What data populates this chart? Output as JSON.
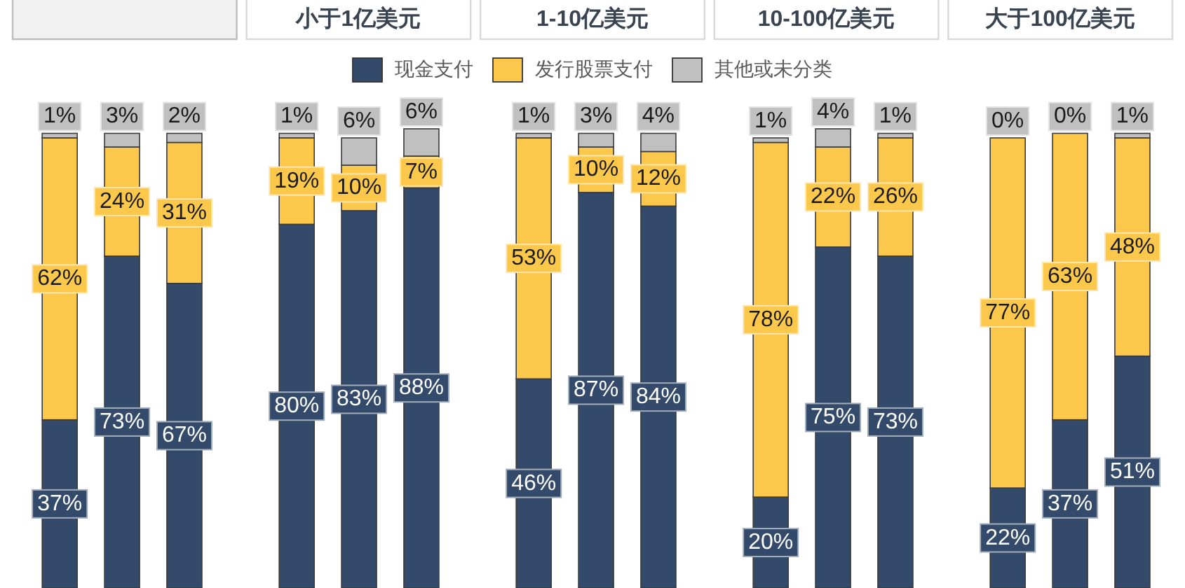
{
  "chart_data": [
    {
      "type": "bar",
      "stacked": true,
      "legend": "top",
      "categories": [
        null,
        null,
        null
      ],
      "series": [
        {
          "name": "现金支付",
          "color": "#334a6b",
          "values": [
            37,
            73,
            67
          ],
          "value_labels": [
            "37%",
            "73%",
            "67%"
          ]
        },
        {
          "name": "发行股票支付",
          "color": "#fcc84b",
          "values": [
            62,
            24,
            31
          ],
          "value_labels": [
            "62%",
            "24%",
            "31%"
          ]
        },
        {
          "name": "其他或未分类",
          "color": "#c0c0c0",
          "values": [
            1,
            3,
            2
          ],
          "value_labels": [
            "1%",
            "3%",
            "2%"
          ]
        }
      ]
    },
    {
      "type": "bar",
      "title": "小于1亿美元",
      "stacked": true,
      "categories": [
        null,
        null,
        null
      ],
      "series": [
        {
          "color": "#334a6b",
          "values": [
            80,
            83,
            88
          ],
          "value_labels": [
            "80%",
            "83%",
            "88%"
          ]
        },
        {
          "color": "#fcc84b",
          "values": [
            19,
            10,
            7
          ],
          "value_labels": [
            "19%",
            "10%",
            "7%"
          ]
        },
        {
          "color": "#c0c0c0",
          "values": [
            1,
            6,
            6
          ],
          "value_labels": [
            "1%",
            "6%",
            "6%"
          ]
        }
      ]
    },
    {
      "type": "bar",
      "title": "1-10亿美元",
      "stacked": true,
      "categories": [
        null,
        null,
        null
      ],
      "series": [
        {
          "color": "#334a6b",
          "values": [
            46,
            87,
            84
          ],
          "value_labels": [
            "46%",
            "87%",
            "84%"
          ]
        },
        {
          "color": "#fcc84b",
          "values": [
            53,
            10,
            12
          ],
          "value_labels": [
            "53%",
            "10%",
            "12%"
          ]
        },
        {
          "color": "#c0c0c0",
          "values": [
            1,
            3,
            4
          ],
          "value_labels": [
            "1%",
            "3%",
            "4%"
          ]
        }
      ]
    },
    {
      "type": "bar",
      "title": "10-100亿美元",
      "stacked": true,
      "categories": [
        null,
        null,
        null
      ],
      "series": [
        {
          "color": "#334a6b",
          "values": [
            20,
            75,
            73
          ],
          "value_labels": [
            "20%",
            "75%",
            "73%"
          ]
        },
        {
          "color": "#fcc84b",
          "values": [
            78,
            22,
            26
          ],
          "value_labels": [
            "78%",
            "22%",
            "26%"
          ]
        },
        {
          "color": "#c0c0c0",
          "values": [
            1,
            4,
            1
          ],
          "value_labels": [
            "1%",
            "4%",
            "1%"
          ]
        }
      ]
    },
    {
      "type": "bar",
      "title": "大于100亿美元",
      "stacked": true,
      "categories": [
        null,
        null,
        null
      ],
      "series": [
        {
          "color": "#334a6b",
          "values": [
            22,
            37,
            51
          ],
          "value_labels": [
            "22%",
            "37%",
            "51%"
          ]
        },
        {
          "color": "#fcc84b",
          "values": [
            77,
            63,
            48
          ],
          "value_labels": [
            "77%",
            "63%",
            "48%"
          ]
        },
        {
          "color": "#c0c0c0",
          "values": [
            0,
            0,
            1
          ],
          "value_labels": [
            "0%",
            "0%",
            "1%"
          ]
        }
      ]
    }
  ]
}
